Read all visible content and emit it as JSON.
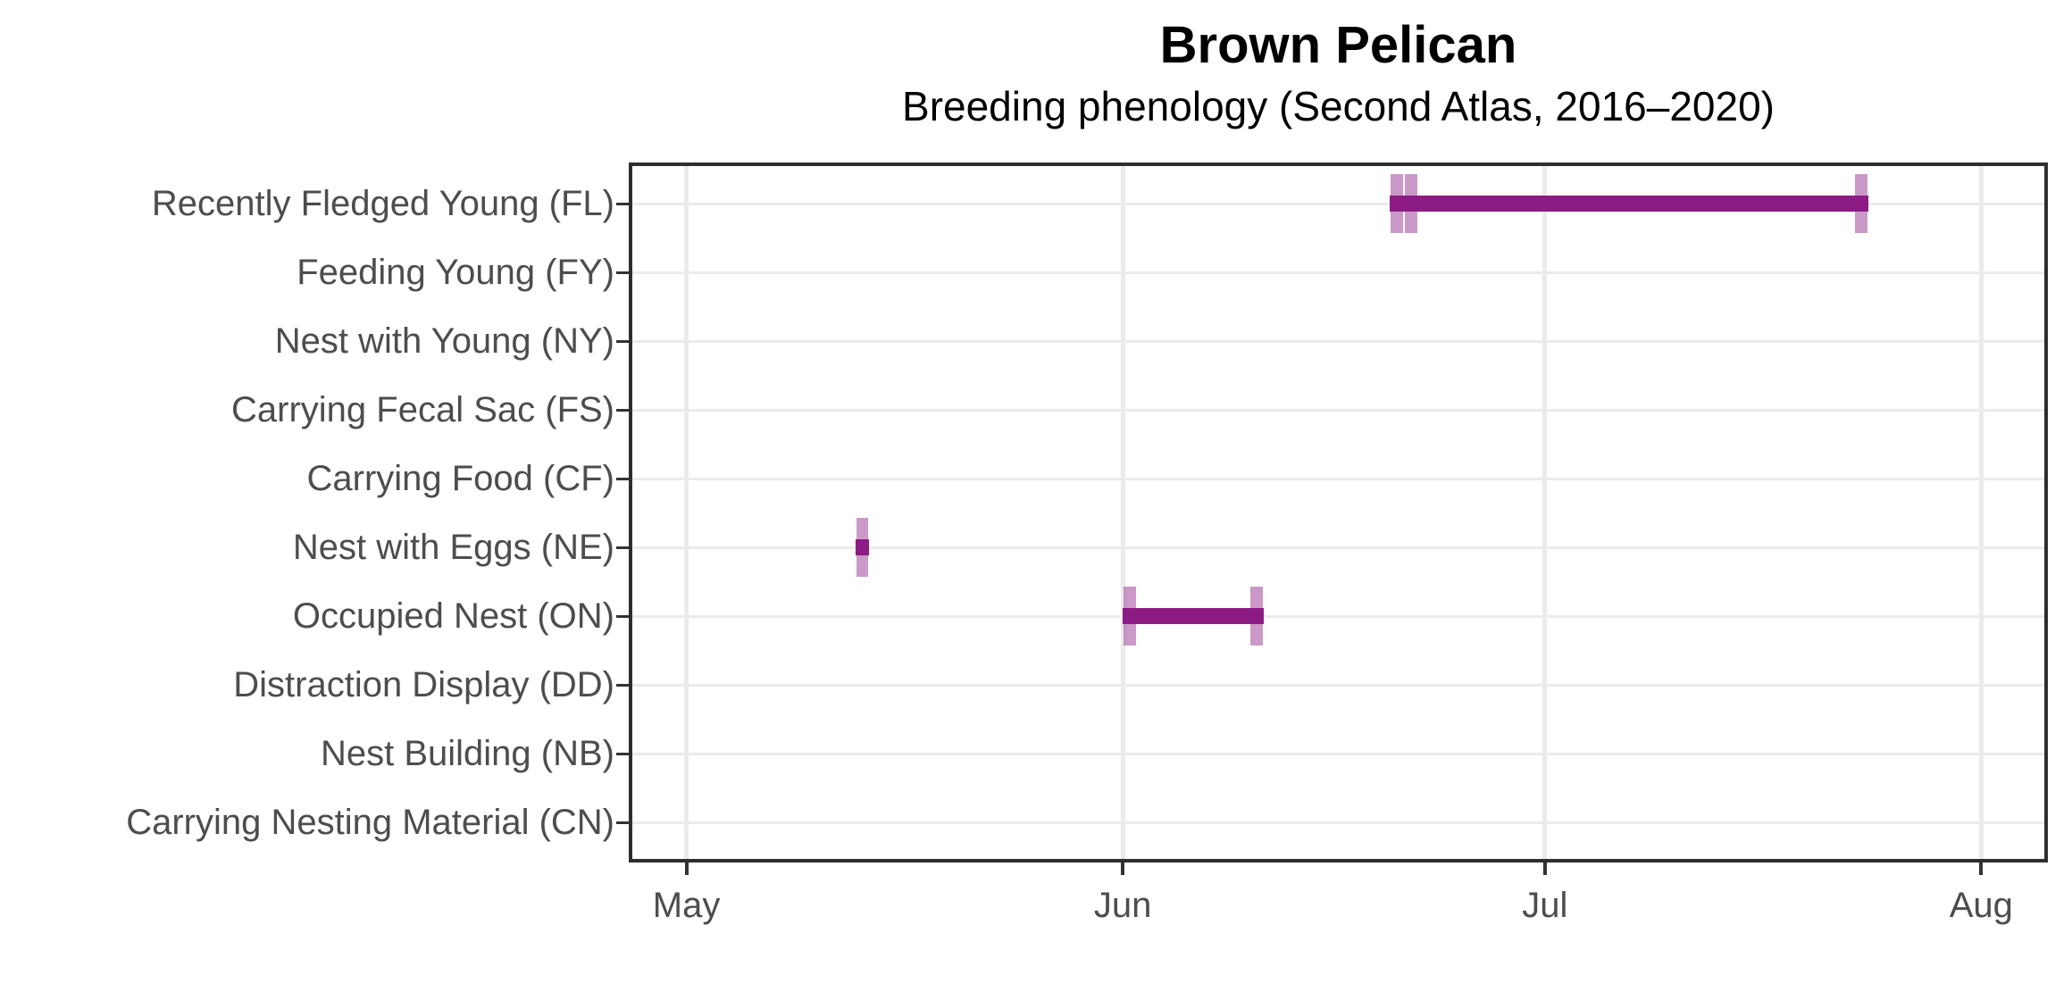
{
  "chart_data": {
    "type": "range_bar",
    "title": "Brown Pelican",
    "subtitle": "Breeding phenology (Second Atlas, 2016–2020)",
    "xlabel": "",
    "ylabel": "",
    "grid": true,
    "legend": false,
    "categories": [
      "Recently Fledged Young (FL)",
      "Feeding Young (FY)",
      "Nest with Young (NY)",
      "Carrying Fecal Sac (FS)",
      "Carrying Food (CF)",
      "Nest with Eggs (NE)",
      "Occupied Nest (ON)",
      "Distraction Display (DD)",
      "Nest Building (NB)",
      "Carrying Nesting Material (CN)"
    ],
    "x_axis": {
      "tick_labels": [
        "May",
        "Jun",
        "Jul",
        "Aug"
      ],
      "tick_days_from_may1": [
        0,
        31,
        61,
        92
      ],
      "domain_days_from_may1": [
        -4.1,
        96.74
      ]
    },
    "series": [
      {
        "category": "Recently Fledged Young (FL)",
        "row": 0,
        "start_date": "Jun 20",
        "end_date": "Jul 23",
        "start_day": 50,
        "end_day": 84,
        "observation_dates": [
          "Jun 20",
          "Jun 21",
          "Jul 23"
        ],
        "observation_days": [
          50,
          51,
          83
        ]
      },
      {
        "category": "Nest with Eggs (NE)",
        "row": 5,
        "start_date": "May 13",
        "end_date": "May 13",
        "start_day": 12,
        "end_day": 13,
        "observation_dates": [
          "May 13"
        ],
        "observation_days": [
          12
        ]
      },
      {
        "category": "Occupied Nest (ON)",
        "row": 6,
        "start_date": "Jun 1",
        "end_date": "Jun 10",
        "start_day": 31,
        "end_day": 41,
        "observation_dates": [
          "Jun 1",
          "Jun 10"
        ],
        "observation_days": [
          31,
          40
        ]
      }
    ],
    "colors": {
      "bar": "#8C1C84",
      "observation_tick": "rgba(140,28,132,0.45)",
      "gridline": "#EBEBEB",
      "axis_text": "#4D4D4D",
      "panel_border": "#2E2E2E",
      "tick_mark": "#333333",
      "title_text": "#000000"
    }
  }
}
